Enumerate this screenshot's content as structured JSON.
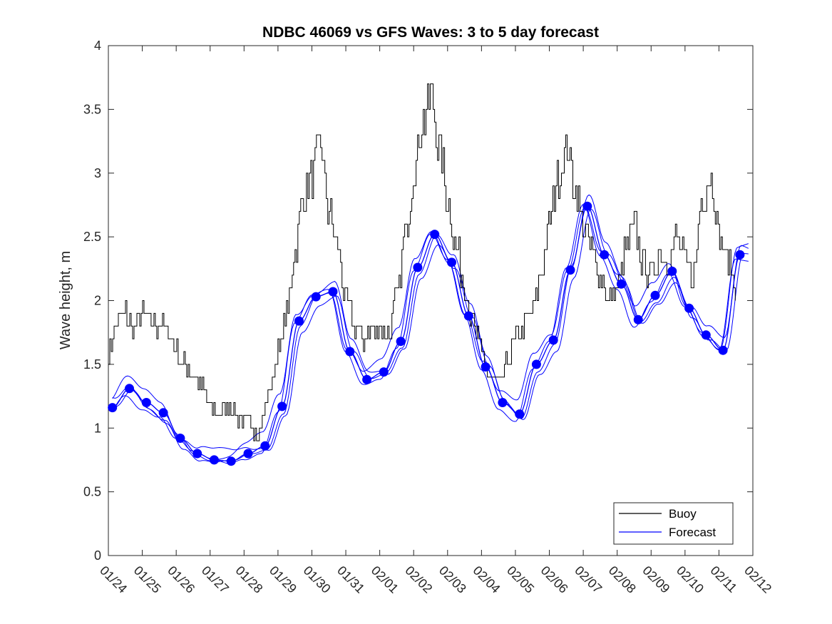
{
  "chart_data": {
    "type": "line",
    "title": "NDBC 46069 vs GFS Waves: 3 to 5 day forecast",
    "xlabel": "",
    "ylabel": "Wave height, m",
    "x_unit": "days since 01/24",
    "xlim": [
      0,
      19
    ],
    "ylim": [
      0,
      4
    ],
    "yticks": [
      0,
      0.5,
      1,
      1.5,
      2,
      2.5,
      3,
      3.5,
      4
    ],
    "ytick_labels": [
      "0",
      "0.5",
      "1",
      "1.5",
      "2",
      "2.5",
      "3",
      "3.5",
      "4"
    ],
    "xtick_labels": [
      "01/24",
      "01/25",
      "01/26",
      "01/27",
      "01/28",
      "01/29",
      "01/30",
      "01/31",
      "02/01",
      "02/02",
      "02/03",
      "02/04",
      "02/05",
      "02/06",
      "02/07",
      "02/08",
      "02/09",
      "02/10",
      "02/11",
      "02/12"
    ],
    "grid": false,
    "legend_position": "bottom-right",
    "series": [
      {
        "name": "Buoy",
        "color": "#000000",
        "x": [
          0.0,
          0.25,
          0.5,
          0.75,
          1.0,
          1.25,
          1.5,
          1.75,
          2.0,
          2.25,
          2.5,
          2.75,
          3.0,
          3.25,
          3.5,
          3.75,
          4.0,
          4.25,
          4.5,
          4.75,
          5.0,
          5.25,
          5.5,
          5.75,
          6.0,
          6.25,
          6.5,
          6.75,
          7.0,
          7.25,
          7.5,
          7.75,
          8.0,
          8.25,
          8.5,
          8.75,
          9.0,
          9.25,
          9.5,
          9.75,
          10.0,
          10.25,
          10.5,
          10.75,
          11.0,
          11.25,
          11.5,
          11.75,
          12.0,
          12.25,
          12.5,
          12.75,
          13.0,
          13.25,
          13.5,
          13.75,
          14.0,
          14.25,
          14.5,
          14.75,
          15.0,
          15.25,
          15.5,
          15.75,
          16.0,
          16.25,
          16.5,
          16.75,
          17.0,
          17.25,
          17.5,
          17.75,
          18.0,
          18.25,
          18.5
        ],
        "values": [
          1.6,
          1.85,
          1.9,
          1.75,
          1.9,
          1.85,
          1.8,
          1.75,
          1.6,
          1.5,
          1.4,
          1.3,
          1.15,
          1.1,
          1.2,
          1.1,
          1.05,
          1.0,
          1.0,
          1.3,
          1.6,
          1.9,
          2.4,
          2.8,
          3.0,
          3.2,
          2.7,
          2.4,
          2.0,
          1.8,
          1.7,
          1.75,
          1.8,
          1.75,
          2.0,
          2.5,
          3.0,
          3.4,
          3.6,
          3.2,
          2.8,
          2.4,
          2.1,
          1.8,
          1.6,
          1.4,
          1.3,
          1.5,
          1.7,
          1.8,
          1.9,
          2.2,
          2.6,
          3.0,
          3.2,
          2.9,
          2.6,
          2.4,
          2.2,
          2.0,
          2.1,
          2.4,
          2.6,
          2.3,
          2.2,
          2.4,
          2.3,
          2.5,
          2.3,
          2.2,
          2.8,
          3.0,
          2.5,
          2.3,
          2.1
        ]
      },
      {
        "name": "Forecast",
        "color": "#0000ff",
        "x": [
          0.12,
          0.62,
          1.12,
          1.62,
          2.12,
          2.62,
          3.12,
          3.62,
          4.12,
          4.62,
          5.12,
          5.62,
          6.12,
          6.62,
          7.12,
          7.62,
          8.12,
          8.62,
          9.12,
          9.62,
          10.12,
          10.62,
          11.12,
          11.62,
          12.12,
          12.62,
          13.12,
          13.62,
          14.12,
          14.62,
          15.12,
          15.62,
          16.12,
          16.62,
          17.12,
          17.62,
          18.12,
          18.62
        ],
        "values": [
          1.16,
          1.31,
          1.2,
          1.12,
          0.92,
          0.8,
          0.75,
          0.74,
          0.8,
          0.86,
          1.17,
          1.84,
          2.03,
          2.07,
          1.6,
          1.38,
          1.44,
          1.68,
          2.26,
          2.52,
          2.3,
          1.88,
          1.48,
          1.2,
          1.11,
          1.5,
          1.69,
          2.24,
          2.74,
          2.36,
          2.13,
          1.85,
          2.04,
          2.23,
          1.94,
          1.73,
          1.61,
          2.36
        ]
      }
    ]
  }
}
